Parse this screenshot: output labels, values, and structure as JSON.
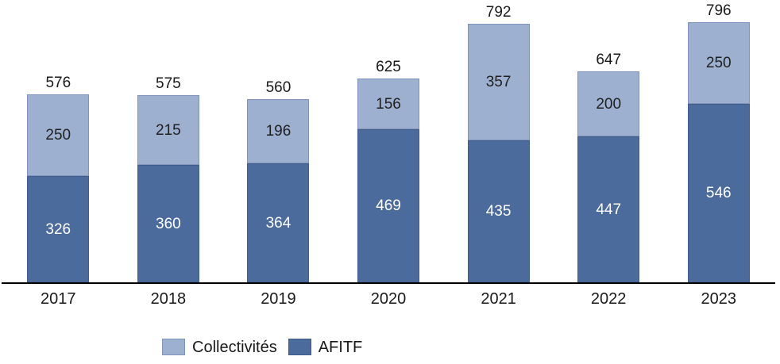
{
  "chart_data": {
    "type": "bar",
    "subtype": "stacked-column",
    "title": "",
    "xlabel": "",
    "ylabel": "",
    "categories": [
      "2017",
      "2018",
      "2019",
      "2020",
      "2021",
      "2022",
      "2023"
    ],
    "series": [
      {
        "name": "Collectivités",
        "stack_position": "top",
        "color": "#9db0d0",
        "border_color": "#8093bd",
        "label_color": "#1f1f1f",
        "values": [
          250,
          215,
          196,
          156,
          357,
          200,
          250
        ]
      },
      {
        "name": "AFITF",
        "stack_position": "bottom",
        "color": "#4a6b9c",
        "border_color": "#3f5e8c",
        "label_color": "#ffffff",
        "values": [
          326,
          360,
          364,
          469,
          435,
          447,
          546
        ]
      }
    ],
    "totals": [
      576,
      575,
      560,
      625,
      792,
      647,
      796
    ],
    "ylim": [
      0,
      865
    ],
    "grid": false,
    "axis_line_color": "#000000",
    "legend_position": "bottom",
    "legend_items": [
      "Collectivités",
      "AFITF"
    ]
  }
}
